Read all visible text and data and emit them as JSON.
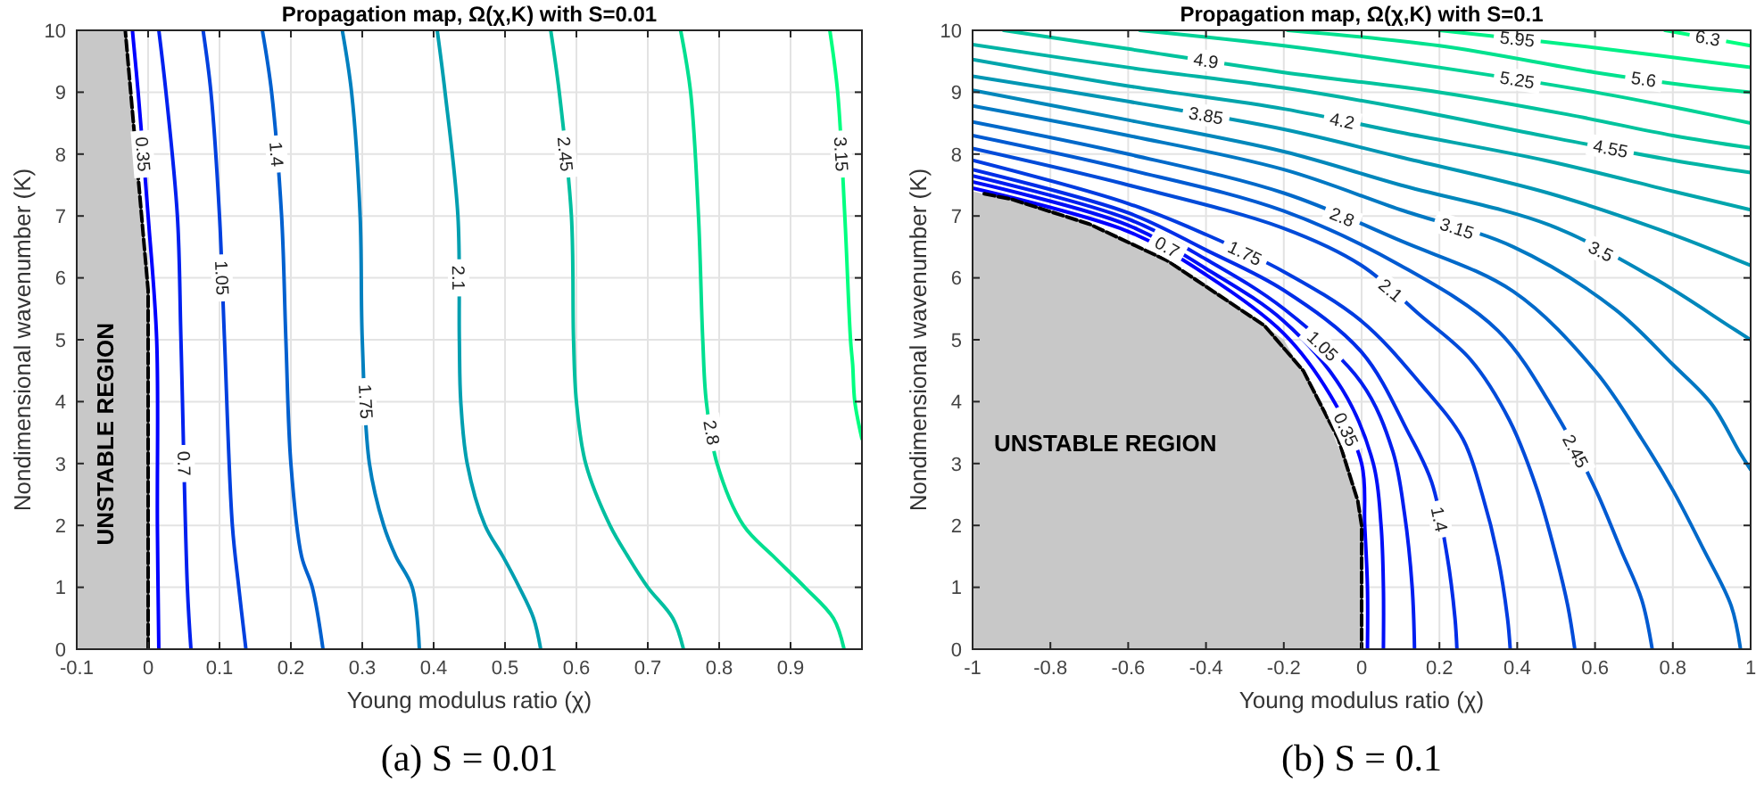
{
  "chart_data": [
    {
      "type": "line",
      "title": "Propagation map, Ω(χ,K) with S=0.01",
      "xlabel": "Young modulus ratio (χ)",
      "ylabel": "Nondimensional wavenumber (K)",
      "xlim": [
        -0.1,
        1
      ],
      "ylim": [
        0,
        10
      ],
      "xticks": [
        -0.1,
        0,
        0.1,
        0.2,
        0.3,
        0.4,
        0.5,
        0.6,
        0.7,
        0.8,
        0.9
      ],
      "yticks": [
        0,
        1,
        2,
        3,
        4,
        5,
        6,
        7,
        8,
        9,
        10
      ],
      "grid": true,
      "annotations": [
        "UNSTABLE REGION",
        "(a) S = 0.01"
      ],
      "series": [
        {
          "type": "area",
          "color": "#c8c8c8",
          "x": [
            -0.1,
            -0.032,
            0
          ],
          "values": [
            10,
            10,
            5.8
          ]
        },
        {
          "type": "line",
          "line_style": "dashed",
          "color": "#000000",
          "x": [
            0,
            0,
            -0.032
          ],
          "values": [
            0,
            5.8,
            10
          ]
        },
        {
          "name": "0.35",
          "color": "#0000ff",
          "x": [
            0.015,
            0.013,
            0.012,
            0.0,
            -0.014,
            -0.022
          ],
          "values": [
            0,
            2,
            5,
            7,
            9,
            10
          ]
        },
        {
          "name": "0.7",
          "color": "#0020ef",
          "x": [
            0.06,
            0.055,
            0.046,
            0.041,
            0.025,
            0.015
          ],
          "values": [
            0,
            1,
            5,
            7,
            9,
            10
          ]
        },
        {
          "name": "1.05",
          "color": "#0040df",
          "x": [
            0.137,
            0.127,
            0.118,
            0.107,
            0.1,
            0.088,
            0.077
          ],
          "values": [
            0,
            1,
            2,
            5,
            7,
            9,
            10
          ]
        },
        {
          "name": "1.4",
          "color": "#0060cf",
          "x": [
            0.245,
            0.23,
            0.215,
            0.2,
            0.193,
            0.187,
            0.173,
            0.16
          ],
          "values": [
            0,
            1,
            1.5,
            3,
            5,
            7,
            9,
            10
          ]
        },
        {
          "name": "1.75",
          "color": "#0080bf",
          "x": [
            0.38,
            0.37,
            0.347,
            0.33,
            0.31,
            0.3,
            0.297,
            0.285,
            0.272
          ],
          "values": [
            0,
            1,
            1.5,
            2,
            3,
            5,
            7,
            9,
            10
          ]
        },
        {
          "name": "2.1",
          "color": "#009fb0",
          "x": [
            0.55,
            0.54,
            0.52,
            0.497,
            0.472,
            0.447,
            0.438,
            0.436,
            0.434,
            0.416,
            0.405
          ],
          "values": [
            0,
            0.5,
            1,
            1.5,
            2,
            3,
            4,
            5,
            7,
            9,
            10
          ]
        },
        {
          "name": "2.45",
          "color": "#00bfa0",
          "x": [
            0.75,
            0.735,
            0.7,
            0.672,
            0.647,
            0.613,
            0.6,
            0.596,
            0.593,
            0.576,
            0.564
          ],
          "values": [
            0,
            0.5,
            1,
            1.5,
            2,
            3,
            4,
            5,
            7,
            9,
            10
          ]
        },
        {
          "name": "2.8",
          "color": "#00df90",
          "x": [
            0.975,
            0.96,
            0.92,
            0.876,
            0.834,
            0.797,
            0.782,
            0.777,
            0.771,
            0.76,
            0.746
          ],
          "values": [
            0,
            0.5,
            1,
            1.5,
            2,
            3,
            4,
            5,
            7,
            9,
            10
          ]
        },
        {
          "name": "3.15",
          "color": "#00ff80",
          "x": [
            1,
            0.99,
            0.987,
            0.984,
            0.976,
            0.966,
            0.955
          ],
          "values": [
            3.4,
            4,
            4.6,
            5,
            7,
            9,
            10
          ]
        }
      ]
    },
    {
      "type": "line",
      "title": "Propagation map, Ω(χ,K) with S=0.1",
      "xlabel": "Young modulus ratio (χ)",
      "ylabel": "Nondimensional wavenumber (K)",
      "xlim": [
        -1,
        1
      ],
      "ylim": [
        0,
        10
      ],
      "xticks": [
        -1,
        -0.8,
        -0.6,
        -0.4,
        -0.2,
        0,
        0.2,
        0.4,
        0.6,
        0.8,
        1
      ],
      "yticks": [
        0,
        1,
        2,
        3,
        4,
        5,
        6,
        7,
        8,
        9,
        10
      ],
      "grid": true,
      "annotations": [
        "UNSTABLE REGION",
        "(b) S = 0.1"
      ],
      "series": [
        {
          "type": "area",
          "color": "#c8c8c8",
          "x": [
            -1,
            -0.8,
            -0.6,
            -0.4,
            -0.3,
            -0.2,
            -0.1,
            -0.03,
            0
          ],
          "values": [
            7.4,
            7.1,
            6.6,
            5.9,
            5.45,
            5.0,
            3.9,
            2.8,
            2.0
          ]
        },
        {
          "type": "line",
          "line_style": "dashed",
          "color": "#000000",
          "x": [
            -0.97,
            -0.9,
            -0.7,
            -0.5,
            -0.25,
            -0.15,
            -0.06,
            -0.01,
            0,
            0,
            0
          ],
          "values": [
            7.36,
            7.27,
            6.87,
            6.28,
            5.23,
            4.5,
            3.4,
            2.4,
            2.0,
            1.0,
            0
          ]
        },
        {
          "name": "0.35",
          "color": "#0000ff",
          "x": [
            -1,
            -0.6,
            -0.4,
            -0.2,
            -0.08,
            0.0,
            0.008,
            0.015,
            0.015
          ],
          "values": [
            7.45,
            6.75,
            6.05,
            5.1,
            4.1,
            3.0,
            2.0,
            1,
            0
          ]
        },
        {
          "name": "0.7",
          "color": "#000ff7",
          "x": [
            -1,
            -0.6,
            -0.4,
            -0.2,
            -0.05,
            0.03,
            0.05,
            0.056,
            0.056
          ],
          "values": [
            7.55,
            6.85,
            6.15,
            5.3,
            4.2,
            3.0,
            2.0,
            1,
            0
          ]
        },
        {
          "name": "1.05",
          "color": "#001ef0",
          "x": [
            -1,
            -0.6,
            -0.4,
            -0.2,
            0,
            0.08,
            0.11,
            0.13,
            0.136
          ],
          "values": [
            7.65,
            6.95,
            6.3,
            5.5,
            4.3,
            3.2,
            2.2,
            1,
            0
          ]
        },
        {
          "name": "1.4",
          "color": "#002de8",
          "x": [
            -1,
            -0.6,
            -0.4,
            -0.2,
            0,
            0.12,
            0.18,
            0.22,
            0.24,
            0.245
          ],
          "values": [
            7.75,
            7.05,
            6.45,
            5.8,
            4.8,
            3.5,
            2.7,
            1.5,
            0.5,
            0
          ]
        },
        {
          "name": "1.75",
          "color": "#003ce1",
          "x": [
            -1,
            -0.6,
            -0.4,
            -0.2,
            0,
            0.15,
            0.26,
            0.31,
            0.35,
            0.375,
            0.382
          ],
          "values": [
            7.9,
            7.2,
            6.7,
            6.1,
            5.3,
            4.3,
            3.4,
            2.5,
            1.5,
            0.5,
            0
          ]
        },
        {
          "name": "2.1",
          "color": "#004bd9",
          "x": [
            -1,
            -0.6,
            -0.2,
            0,
            0.15,
            0.28,
            0.38,
            0.45,
            0.5,
            0.53,
            0.548
          ],
          "values": [
            8.09,
            7.5,
            6.8,
            6.2,
            5.4,
            4.68,
            3.7,
            2.6,
            1.5,
            0.7,
            0
          ]
        },
        {
          "name": "2.45",
          "color": "#005ad2",
          "x": [
            -1,
            -0.6,
            -0.2,
            0.1,
            0.35,
            0.5,
            0.6,
            0.667,
            0.72,
            0.747
          ],
          "values": [
            8.3,
            7.75,
            7.08,
            6.2,
            5.15,
            3.8,
            2.6,
            1.6,
            0.8,
            0
          ]
        },
        {
          "name": "2.8",
          "color": "#0069ca",
          "x": [
            -1,
            -0.6,
            -0.2,
            0.1,
            0.39,
            0.6,
            0.72,
            0.8,
            0.88,
            0.95,
            0.974
          ],
          "values": [
            8.52,
            8.0,
            7.37,
            6.6,
            5.78,
            4.5,
            3.4,
            2.57,
            1.6,
            0.7,
            0
          ]
        },
        {
          "name": "3.15",
          "color": "#0078c3",
          "x": [
            -1,
            -0.6,
            -0.2,
            0.1,
            0.39,
            0.65,
            0.8,
            0.9,
            0.97,
            1
          ],
          "values": [
            8.78,
            8.3,
            7.75,
            7.1,
            6.5,
            5.5,
            4.6,
            3.96,
            3.2,
            2.9
          ]
        },
        {
          "name": "3.5",
          "color": "#0087bb",
          "x": [
            -1,
            -0.6,
            -0.2,
            0.1,
            0.48,
            0.75,
            0.95,
            1
          ],
          "values": [
            9.03,
            8.55,
            8.04,
            7.5,
            6.86,
            6.0,
            5.2,
            5.0
          ]
        },
        {
          "name": "3.85",
          "color": "#0096b4",
          "x": [
            -1,
            -0.6,
            -0.2,
            0.1,
            0.48,
            0.8,
            1
          ],
          "values": [
            9.26,
            8.85,
            8.4,
            7.95,
            7.37,
            6.7,
            6.2
          ]
        },
        {
          "name": "4.2",
          "color": "#00a5ac",
          "x": [
            -1,
            -0.6,
            -0.2,
            0.1,
            0.47,
            0.8,
            1
          ],
          "values": [
            9.53,
            9.1,
            8.73,
            8.35,
            7.9,
            7.4,
            7.1
          ]
        },
        {
          "name": "4.55",
          "color": "#00b4a5",
          "x": [
            -1,
            -0.6,
            -0.2,
            0.1,
            0.48,
            0.8,
            1
          ],
          "values": [
            9.77,
            9.4,
            9.07,
            8.75,
            8.28,
            7.9,
            7.7
          ]
        },
        {
          "name": "4.9",
          "color": "#00c39d",
          "x": [
            -0.92,
            -0.6,
            -0.2,
            0.2,
            0.53,
            0.8,
            1
          ],
          "values": [
            10,
            9.7,
            9.32,
            9.0,
            8.64,
            8.3,
            8.1
          ]
        },
        {
          "name": "5.25",
          "color": "#00d296",
          "x": [
            -0.57,
            -0.2,
            0.2,
            0.6,
            0.84,
            1
          ],
          "values": [
            10,
            9.75,
            9.4,
            9.0,
            8.71,
            8.5
          ]
        },
        {
          "name": "5.6",
          "color": "#00e18e",
          "x": [
            -0.19,
            0.2,
            0.6,
            0.85,
            1
          ],
          "values": [
            10,
            9.75,
            9.32,
            9.1,
            9.0
          ]
        },
        {
          "name": "5.95",
          "color": "#00f087",
          "x": [
            0.2,
            0.6,
            1
          ],
          "values": [
            10,
            9.72,
            9.4
          ]
        },
        {
          "name": "6.3",
          "color": "#00ff80",
          "x": [
            0.78,
            1
          ],
          "values": [
            10,
            9.75
          ]
        }
      ]
    }
  ]
}
